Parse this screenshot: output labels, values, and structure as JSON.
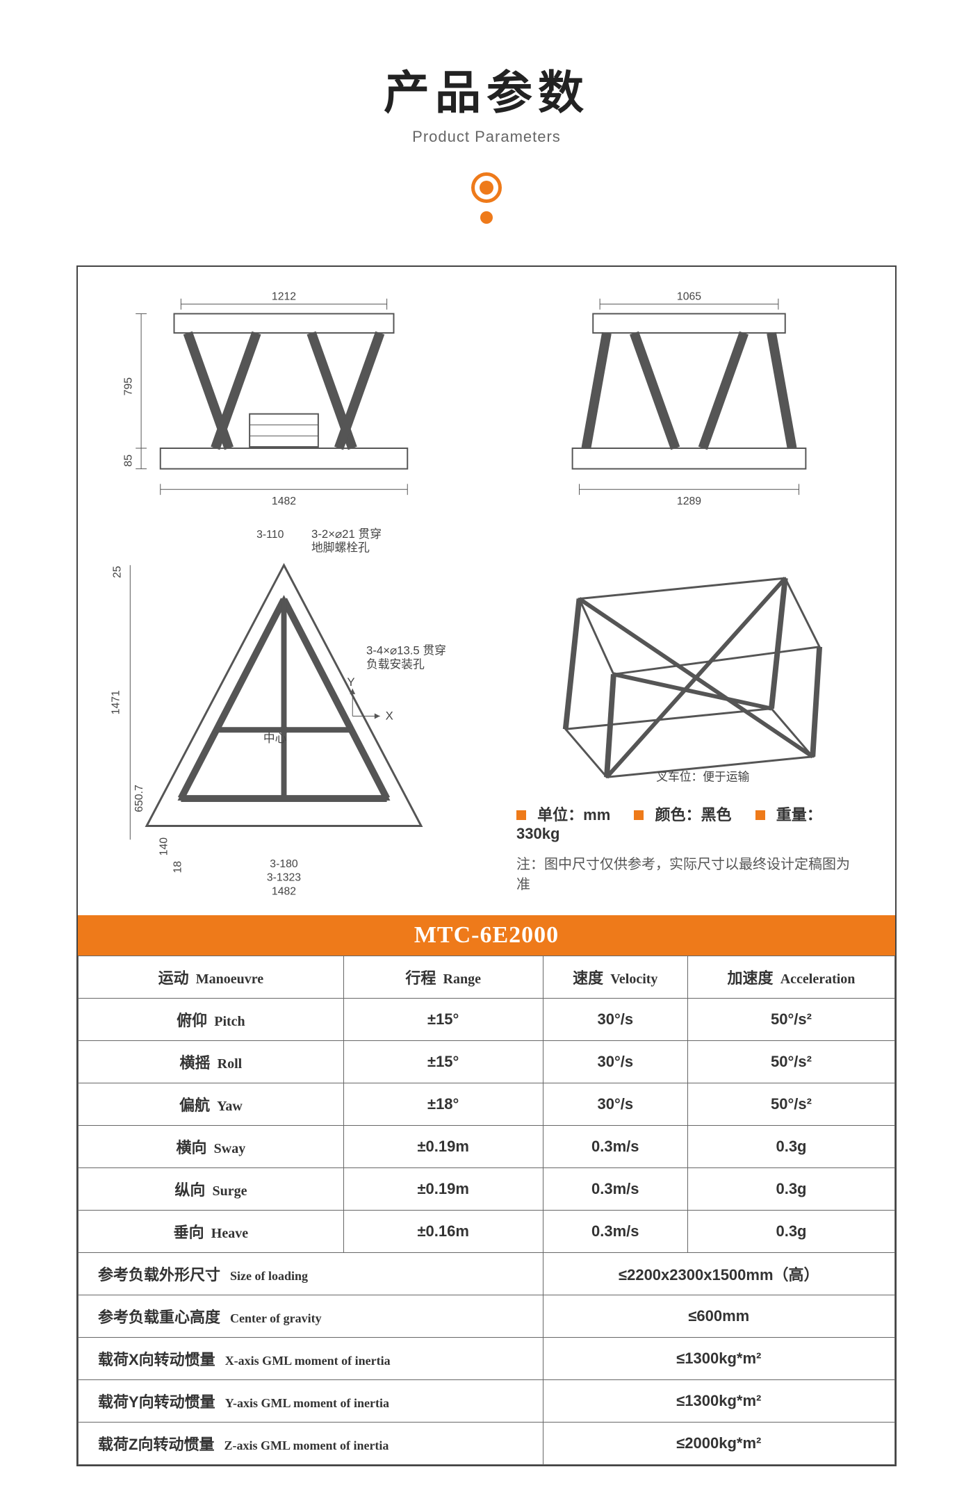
{
  "header": {
    "title_cn": "产品参数",
    "title_en": "Product Parameters",
    "accent_color": "#ee7a1a"
  },
  "drawings": {
    "front": {
      "top_dim": "1212",
      "left_dim_upper": "795",
      "left_dim_lower": "85",
      "bottom_dim": "1482"
    },
    "side": {
      "top_dim": "1065",
      "bottom_dim": "1289"
    },
    "top": {
      "top_small": "3-110",
      "top_note1": "3-2×⌀21 贯穿",
      "top_note2": "地脚螺栓孔",
      "left_small": "25",
      "left_main": "1471",
      "left_lower": "650.7",
      "right_note1": "3-4×⌀13.5 贯穿",
      "right_note2": "负载安装孔",
      "center_label": "中心",
      "axis_x": "X",
      "axis_y": "Y",
      "bottom_small1": "140",
      "bottom_small2": "18",
      "bottom_a": "3-180",
      "bottom_b": "3-1323",
      "bottom_c": "1482"
    },
    "iso": {
      "caption": "叉车位：便于运输"
    }
  },
  "legend": {
    "unit_label": "单位：",
    "unit_value": "mm",
    "color_label": "颜色：",
    "color_value": "黑色",
    "weight_label": "重量：",
    "weight_value": "330kg",
    "note": "注：图中尺寸仅供参考，实际尺寸以最终设计定稿图为准"
  },
  "model": "MTC-6E2000",
  "spec_table": {
    "headers": [
      {
        "cn": "运动",
        "en": "Manoeuvre"
      },
      {
        "cn": "行程",
        "en": "Range"
      },
      {
        "cn": "速度",
        "en": "Velocity"
      },
      {
        "cn": "加速度",
        "en": "Acceleration"
      }
    ],
    "motion_rows": [
      {
        "cn": "俯仰",
        "en": "Pitch",
        "range": "±15°",
        "velocity": "30°/s",
        "accel": "50°/s²"
      },
      {
        "cn": "横摇",
        "en": "Roll",
        "range": "±15°",
        "velocity": "30°/s",
        "accel": "50°/s²"
      },
      {
        "cn": "偏航",
        "en": "Yaw",
        "range": "±18°",
        "velocity": "30°/s",
        "accel": "50°/s²"
      },
      {
        "cn": "横向",
        "en": "Sway",
        "range": "±0.19m",
        "velocity": "0.3m/s",
        "accel": "0.3g"
      },
      {
        "cn": "纵向",
        "en": "Surge",
        "range": "±0.19m",
        "velocity": "0.3m/s",
        "accel": "0.3g"
      },
      {
        "cn": "垂向",
        "en": "Heave",
        "range": "±0.16m",
        "velocity": "0.3m/s",
        "accel": "0.3g"
      }
    ],
    "extra_rows": [
      {
        "cn": "参考负载外形尺寸",
        "en": "Size of loading",
        "value": "≤2200x2300x1500mm（高）"
      },
      {
        "cn": "参考负载重心高度",
        "en": "Center of gravity",
        "value": "≤600mm"
      },
      {
        "cn": "载荷X向转动惯量",
        "en": "X-axis GML moment of inertia",
        "value": "≤1300kg*m²"
      },
      {
        "cn": "载荷Y向转动惯量",
        "en": "Y-axis GML moment of inertia",
        "value": "≤1300kg*m²"
      },
      {
        "cn": "载荷Z向转动惯量",
        "en": "Z-axis GML moment of inertia",
        "value": "≤2000kg*m²"
      }
    ]
  },
  "styling": {
    "border_color": "#444",
    "text_color": "#333",
    "table_font_size": 22,
    "header_cn_font_size": 66
  }
}
